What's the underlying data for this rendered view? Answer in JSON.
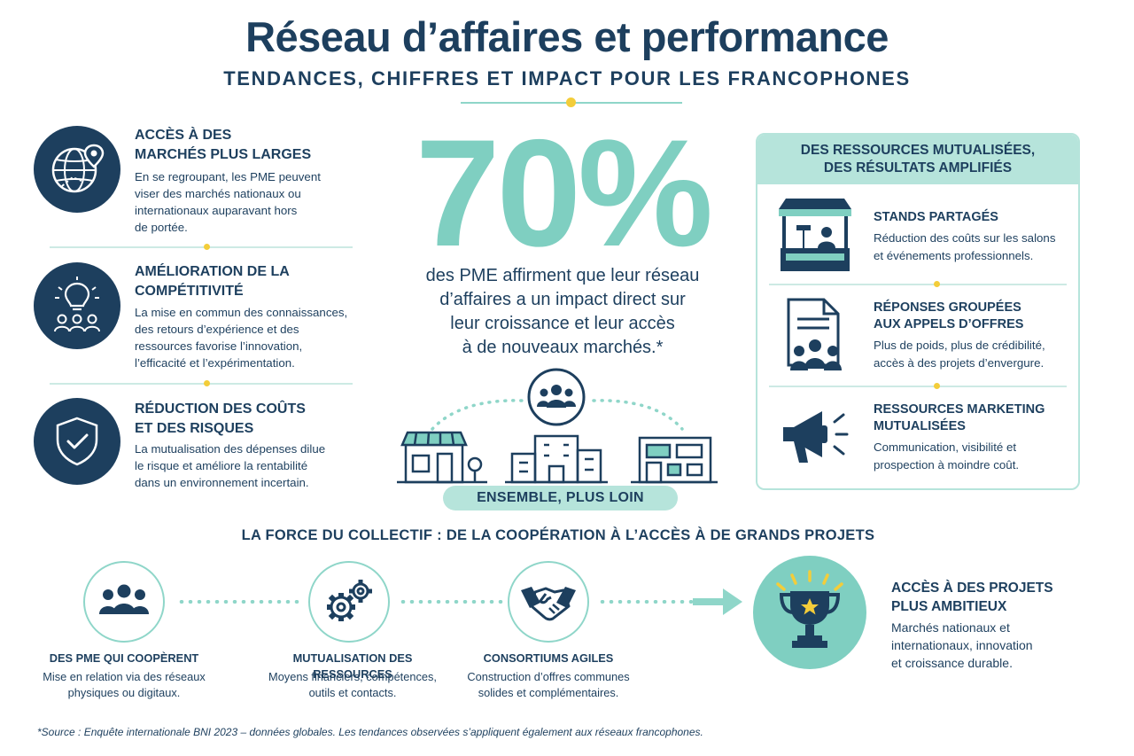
{
  "header": {
    "title": "Réseau d’affaires et performance",
    "subtitle": "TENDANCES, CHIFFRES ET IMPACT POUR LES FRANCOPHONES"
  },
  "left_column": {
    "items": [
      {
        "icon": "globe-location-icon",
        "heading_line1": "ACCÈS À DES",
        "heading_line2": "MARCHÉS PLUS LARGES",
        "text_lines": [
          "En se regroupant, les PME peuvent",
          "viser des marchés nationaux ou",
          "internationaux auparavant hors",
          "de portée."
        ]
      },
      {
        "icon": "lightbulb-team-icon",
        "heading_line1": "AMÉLIORATION DE LA",
        "heading_line2": "COMPÉTITIVITÉ",
        "text_lines": [
          "La mise en commun des connaissances,",
          "des retours d’expérience et des",
          "ressources favorise l’innovation,",
          "l’efficacité et l’expérimentation."
        ]
      },
      {
        "icon": "shield-check-icon",
        "heading_line1": "RÉDUCTION DES COÛTS",
        "heading_line2": "ET DES RISQUES",
        "text_lines": [
          "La mutualisation des dépenses dilue",
          "le risque et améliore la rentabilité",
          "dans un environnement incertain."
        ]
      }
    ]
  },
  "center": {
    "big_stat": "70%",
    "stat_lines": [
      "des PME affirment que leur réseau",
      "d’affaires a un impact direct sur",
      "leur croissance et leur accès",
      "à de nouveaux marchés.*"
    ],
    "pill_label": "ENSEMBLE, PLUS LOIN"
  },
  "right_panel": {
    "heading_line1": "DES RESSOURCES MUTUALISÉES,",
    "heading_line2": "DES RÉSULTATS AMPLIFIÉS",
    "items": [
      {
        "icon": "market-stand-icon",
        "heading_lines": [
          "STANDS PARTAGÉS"
        ],
        "text_lines": [
          "Réduction des coûts sur les salons",
          "et événements professionnels."
        ]
      },
      {
        "icon": "document-team-icon",
        "heading_lines": [
          "RÉPONSES GROUPÉES",
          "AUX APPELS D’OFFRES"
        ],
        "text_lines": [
          "Plus de poids, plus de crédibilité,",
          "accès à des projets d’envergure."
        ]
      },
      {
        "icon": "megaphone-icon",
        "heading_lines": [
          "RESSOURCES MARKETING",
          "MUTUALISÉES"
        ],
        "text_lines": [
          "Communication, visibilité et",
          "prospection à moindre coût."
        ]
      }
    ]
  },
  "bottom": {
    "title": "LA FORCE DU COLLECTIF : DE LA COOPÉRATION À L’ACCÈS À DE GRANDS PROJETS",
    "steps": [
      {
        "icon": "team-icon",
        "heading": "DES PME QUI COOPÈRENT",
        "text_lines": [
          "Mise en relation via des réseaux",
          "physiques ou digitaux."
        ]
      },
      {
        "icon": "gears-icon",
        "heading": "MUTUALISATION DES RESSOURCES",
        "text_lines": [
          "Moyens financiers, compétences,",
          "outils et contacts."
        ]
      },
      {
        "icon": "handshake-icon",
        "heading": "CONSORTIUMS AGILES",
        "text_lines": [
          "Construction d’offres communes",
          "solides et complémentaires."
        ]
      }
    ],
    "final": {
      "icon": "trophy-icon",
      "heading_lines": [
        "ACCÈS À DES PROJETS",
        "PLUS AMBITIEUX"
      ],
      "text_lines": [
        "Marchés nationaux et",
        "internationaux, innovation",
        "et croissance durable."
      ]
    }
  },
  "footer": {
    "source": "*Source : Enquête internationale BNI 2023 – données globales. Les tendances observées s’appliquent également aux réseaux francophones."
  },
  "colors": {
    "navy": "#1d3f5e",
    "teal": "#7fcfc1",
    "light_teal": "#b6e4db",
    "accent_yellow": "#f3cd3a"
  }
}
